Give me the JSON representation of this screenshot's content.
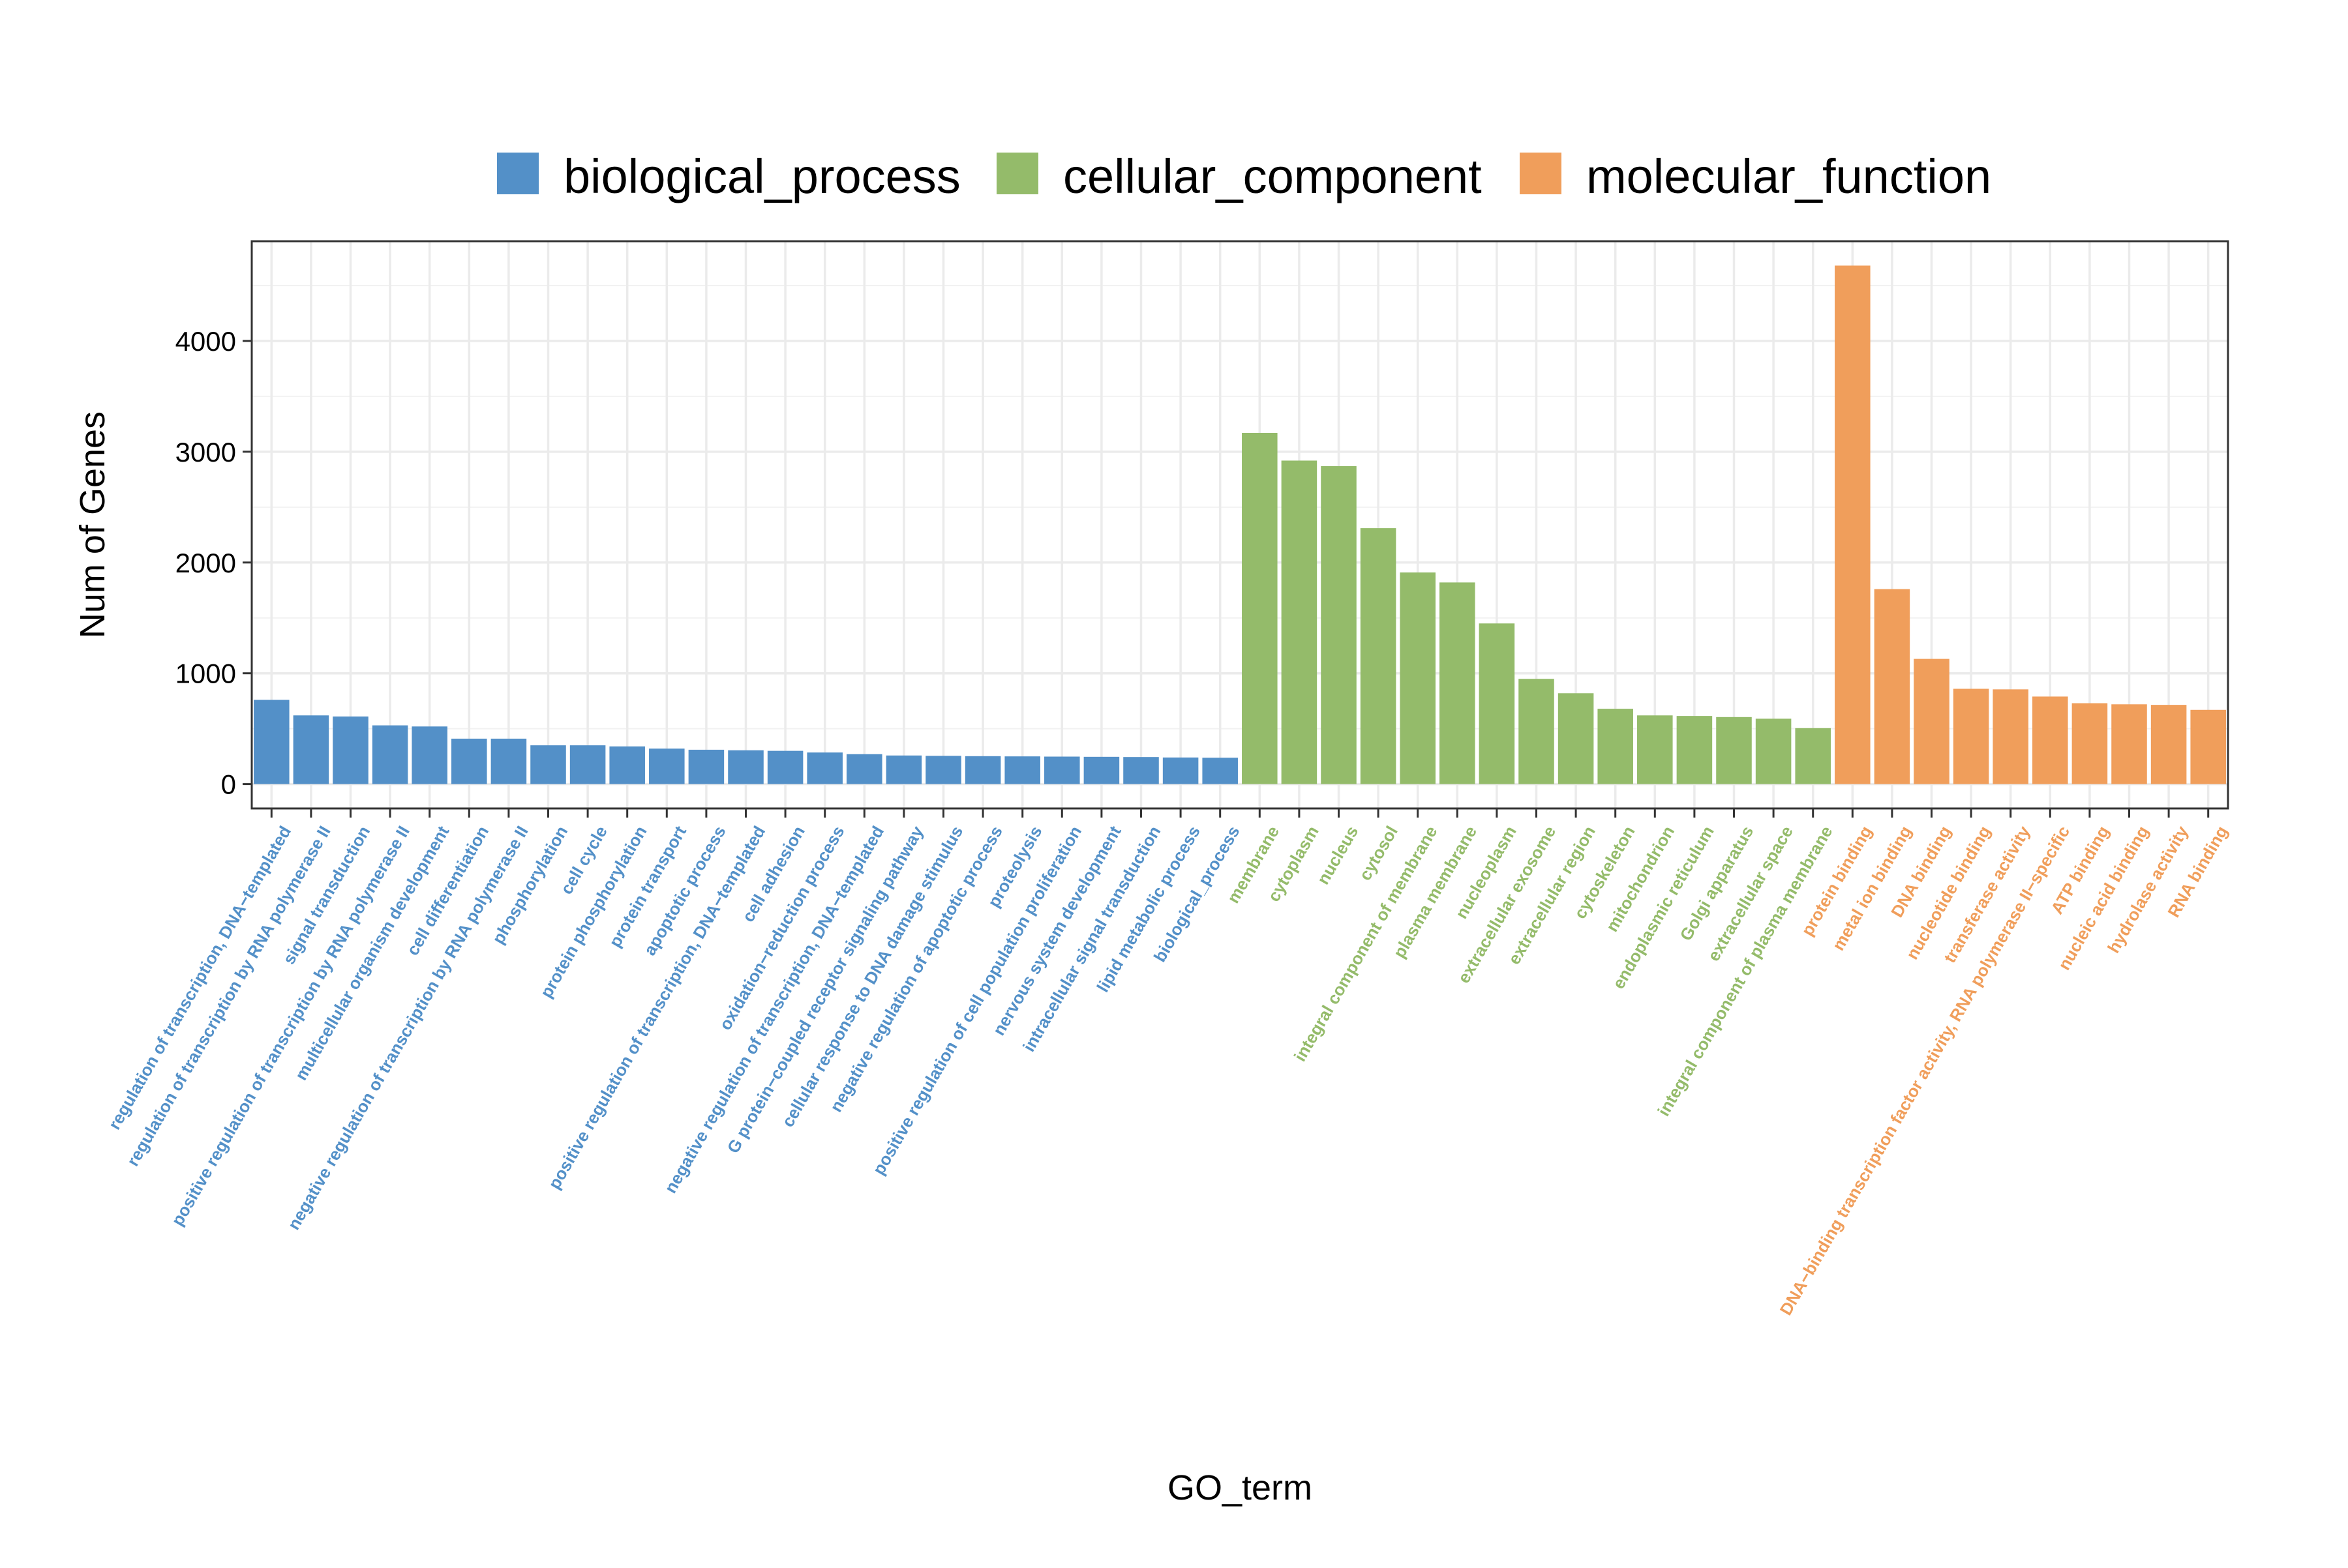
{
  "chart_data": {
    "type": "bar",
    "xlabel": "GO_term",
    "ylabel": "Num of Genes",
    "ylim": [
      -220,
      4900
    ],
    "yticks": [
      0,
      1000,
      2000,
      3000,
      4000
    ],
    "grid": true,
    "legend_position": "top",
    "legend": [
      {
        "name": "biological_process",
        "color": "#5390C8"
      },
      {
        "name": "cellular_component",
        "color": "#94BB6A"
      },
      {
        "name": "molecular_function",
        "color": "#F09E5B"
      }
    ],
    "categories": [
      "regulation of transcription, DNA−templated",
      "regulation of transcription by RNA polymerase II",
      "signal transduction",
      "positive regulation of transcription by RNA polymerase II",
      "multicellular organism development",
      "cell differentiation",
      "negative regulation of transcription by RNA polymerase II",
      "phosphorylation",
      "cell cycle",
      "protein phosphorylation",
      "protein transport",
      "apoptotic process",
      "positive regulation of transcription, DNA−templated",
      "cell adhesion",
      "oxidation−reduction process",
      "negative regulation of transcription, DNA−templated",
      "G protein−coupled receptor signaling pathway",
      "cellular response to DNA damage stimulus",
      "negative regulation of apoptotic process",
      "proteolysis",
      "positive regulation of cell population proliferation",
      "nervous system development",
      "intracellular signal transduction",
      "lipid metabolic process",
      "biological_process",
      "membrane",
      "cytoplasm",
      "nucleus",
      "cytosol",
      "integral component of membrane",
      "plasma membrane",
      "nucleoplasm",
      "extracellular exosome",
      "extracellular region",
      "cytoskeleton",
      "mitochondrion",
      "endoplasmic reticulum",
      "Golgi apparatus",
      "extracellular space",
      "integral component of plasma membrane",
      "protein binding",
      "metal ion binding",
      "DNA binding",
      "nucleotide binding",
      "transferase activity",
      "DNA−binding transcription factor activity, RNA polymerase II−specific",
      "ATP binding",
      "nucleic acid binding",
      "hydrolase activity",
      "RNA binding"
    ],
    "values": [
      760,
      620,
      610,
      530,
      520,
      410,
      410,
      350,
      350,
      340,
      320,
      310,
      305,
      300,
      285,
      270,
      258,
      255,
      252,
      250,
      248,
      246,
      244,
      240,
      238,
      3170,
      2920,
      2870,
      2310,
      1910,
      1820,
      1450,
      950,
      820,
      680,
      620,
      615,
      605,
      590,
      505,
      4680,
      1760,
      1130,
      860,
      855,
      790,
      730,
      720,
      715,
      670
    ],
    "groups": [
      0,
      0,
      0,
      0,
      0,
      0,
      0,
      0,
      0,
      0,
      0,
      0,
      0,
      0,
      0,
      0,
      0,
      0,
      0,
      0,
      0,
      0,
      0,
      0,
      0,
      1,
      1,
      1,
      1,
      1,
      1,
      1,
      1,
      1,
      1,
      1,
      1,
      1,
      1,
      1,
      2,
      2,
      2,
      2,
      2,
      2,
      2,
      2,
      2,
      2
    ]
  }
}
